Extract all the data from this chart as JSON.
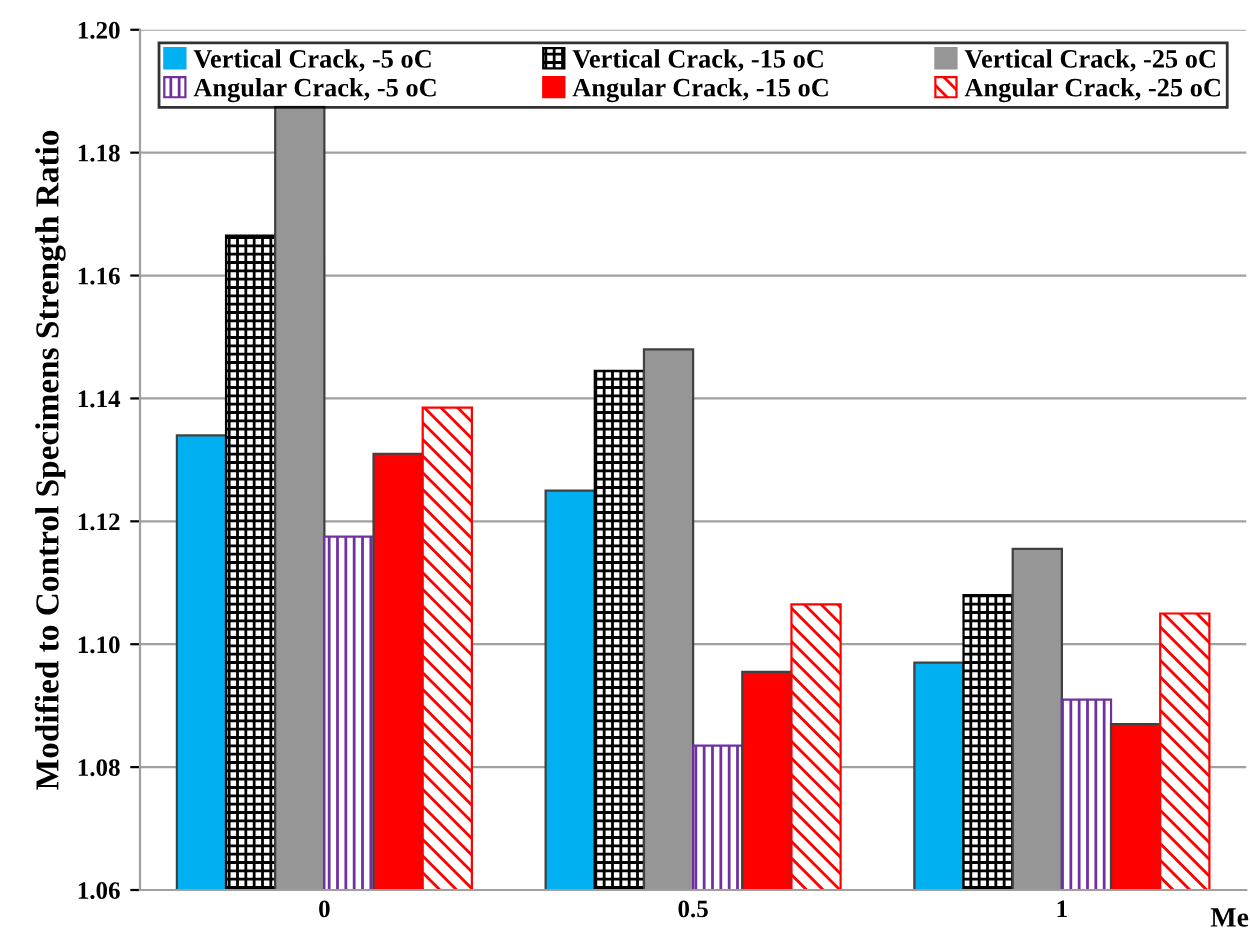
{
  "chart_data": {
    "type": "bar",
    "ylabel": "Modified to Control Specimens Strength Ratio",
    "xlabel": "Me",
    "categories": [
      "0",
      "0.5",
      "1"
    ],
    "series": [
      {
        "name": "Vertical Crack, -5 oC",
        "color": "#00b0f0",
        "values": [
          1.134,
          1.125,
          1.097
        ]
      },
      {
        "name": "Vertical Crack, -15 oC",
        "color": "#000000",
        "values": [
          1.1665,
          1.1445,
          1.108
        ]
      },
      {
        "name": "Vertical Crack, -25 oC",
        "color": "#969696",
        "values": [
          1.1875,
          1.148,
          1.1155
        ]
      },
      {
        "name": "Angular Crack, -5 oC",
        "color": "#7030a0",
        "values": [
          1.1175,
          1.0835,
          1.091
        ]
      },
      {
        "name": "Angular Crack, -15 oC",
        "color": "#ff0000",
        "values": [
          1.131,
          1.0955,
          1.087
        ]
      },
      {
        "name": "Angular Crack, -25 oC",
        "color": "#ff0000",
        "values": [
          1.1385,
          1.1065,
          1.105
        ]
      }
    ],
    "ylim": [
      1.06,
      1.2
    ],
    "yticks": [
      {
        "value": 1.06,
        "label": "1.06"
      },
      {
        "value": 1.08,
        "label": "1.08"
      },
      {
        "value": 1.1,
        "label": "1.10"
      },
      {
        "value": 1.12,
        "label": "1.12"
      },
      {
        "value": 1.14,
        "label": "1.14"
      },
      {
        "value": 1.16,
        "label": "1.16"
      },
      {
        "value": 1.18,
        "label": "1.18"
      },
      {
        "value": 1.2,
        "label": "1.20"
      }
    ],
    "grid": "y",
    "legend": "top"
  }
}
